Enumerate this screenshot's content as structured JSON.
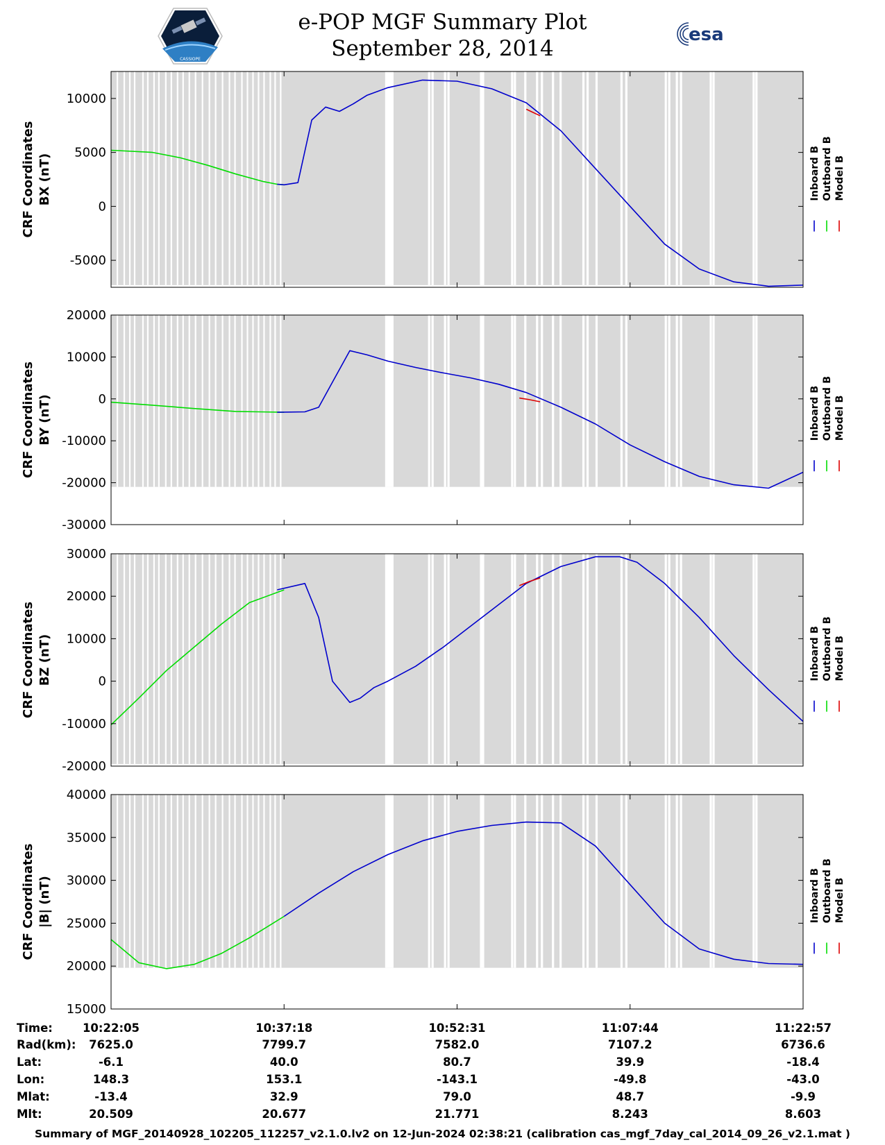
{
  "header": {
    "title": "e-POP MGF Summary Plot",
    "date": "September 28, 2014",
    "right_logo_text": "esa",
    "left_logo_text": "CASSIOPE"
  },
  "colors": {
    "inboard": "#0000cc",
    "outboard": "#00dd00",
    "model": "#dd0000",
    "shade": "#d9d9d9"
  },
  "legend": {
    "inboard": "Inboard B",
    "outboard": "Outboard B",
    "model": "Model B"
  },
  "chart_data": [
    {
      "type": "line",
      "ylabel": "CRF Coordinates",
      "ylabel2": "BX (nT)",
      "ylim": [
        -7500,
        12500
      ],
      "yticks": [
        -5000,
        0,
        5000,
        10000
      ],
      "ytick_labels": [
        "-5000",
        "0",
        "5000",
        "10000"
      ],
      "shade_to": -7300,
      "outboard": {
        "x": [
          0,
          60,
          100,
          140,
          180,
          220,
          240,
          250
        ],
        "y": [
          5200,
          5000,
          4500,
          3800,
          3000,
          2300,
          2050,
          2000
        ]
      },
      "inboard": {
        "x": [
          240,
          250,
          270,
          290,
          310,
          330,
          350,
          370,
          400,
          450,
          500,
          550,
          600,
          650,
          700,
          750,
          800,
          850,
          900,
          950,
          1000
        ],
        "y": [
          2050,
          2000,
          2200,
          8000,
          9200,
          8800,
          9500,
          10300,
          11000,
          11700,
          11600,
          10900,
          9600,
          7000,
          3500,
          0,
          -3500,
          -5800,
          -7000,
          -7400,
          -7300
        ]
      },
      "model": {
        "x": [
          600,
          610,
          620
        ],
        "y": [
          9000,
          8700,
          8400
        ]
      }
    },
    {
      "type": "line",
      "ylabel": "CRF Coordinates",
      "ylabel2": "BY (nT)",
      "ylim": [
        -30000,
        20000
      ],
      "yticks": [
        -30000,
        -20000,
        -10000,
        0,
        10000,
        20000
      ],
      "ytick_labels": [
        "-30000",
        "-20000",
        "-10000",
        "0",
        "10000",
        "20000"
      ],
      "shade_to": -21000,
      "outboard": {
        "x": [
          0,
          60,
          120,
          180,
          250
        ],
        "y": [
          -800,
          -1500,
          -2300,
          -3000,
          -3200
        ]
      },
      "inboard": {
        "x": [
          240,
          280,
          300,
          320,
          345,
          370,
          400,
          440,
          480,
          520,
          560,
          600,
          650,
          700,
          750,
          800,
          850,
          900,
          950,
          1000
        ],
        "y": [
          -3200,
          -3100,
          -2000,
          4000,
          11500,
          10500,
          9000,
          7500,
          6200,
          5000,
          3500,
          1500,
          -2000,
          -6000,
          -11000,
          -15000,
          -18500,
          -20500,
          -21300,
          -17500
        ]
      },
      "model": {
        "x": [
          590,
          605,
          620
        ],
        "y": [
          200,
          -200,
          -700
        ]
      }
    },
    {
      "type": "line",
      "ylabel": "CRF Coordinates",
      "ylabel2": "BZ (nT)",
      "ylim": [
        -20000,
        30000
      ],
      "yticks": [
        -20000,
        -10000,
        0,
        10000,
        20000,
        30000
      ],
      "ytick_labels": [
        "-20000",
        "-10000",
        "0",
        "10000",
        "20000",
        "30000"
      ],
      "shade_to": -19500,
      "outboard": {
        "x": [
          0,
          40,
          80,
          120,
          160,
          200,
          250
        ],
        "y": [
          -10300,
          -4000,
          2500,
          8000,
          13500,
          18500,
          21500
        ]
      },
      "inboard": {
        "x": [
          240,
          280,
          300,
          320,
          345,
          360,
          380,
          400,
          440,
          480,
          520,
          560,
          600,
          650,
          700,
          735,
          760,
          800,
          850,
          900,
          950,
          1000
        ],
        "y": [
          21500,
          23000,
          15000,
          0,
          -5000,
          -4000,
          -1500,
          0,
          3500,
          8000,
          13000,
          18000,
          23000,
          27000,
          29300,
          29300,
          28000,
          23000,
          15000,
          6000,
          -2000,
          -9500
        ]
      },
      "model": {
        "x": [
          590,
          605,
          620
        ],
        "y": [
          22500,
          23500,
          24300
        ]
      }
    },
    {
      "type": "line",
      "ylabel": "CRF Coordinates",
      "ylabel2": "|B| (nT)",
      "ylim": [
        15000,
        40000
      ],
      "yticks": [
        15000,
        20000,
        25000,
        30000,
        35000,
        40000
      ],
      "ytick_labels": [
        "15000",
        "20000",
        "25000",
        "30000",
        "35000",
        "40000"
      ],
      "shade_to": 19800,
      "outboard": {
        "x": [
          0,
          40,
          80,
          120,
          160,
          200,
          230,
          250
        ],
        "y": [
          23100,
          20400,
          19700,
          20200,
          21500,
          23300,
          24800,
          25800
        ]
      },
      "inboard": {
        "x": [
          250,
          300,
          350,
          400,
          450,
          500,
          550,
          600,
          650,
          700,
          750,
          800,
          850,
          900,
          950,
          1000
        ],
        "y": [
          25800,
          28500,
          31000,
          33000,
          34600,
          35700,
          36400,
          36800,
          36700,
          34000,
          29500,
          25000,
          22000,
          20800,
          20300,
          20200
        ]
      },
      "model": {
        "x": [],
        "y": []
      }
    }
  ],
  "time_axis": {
    "row_labels": [
      "Time:",
      "Rad(km):",
      "Lat:",
      "Lon:",
      "Mlat:",
      "Mlt:"
    ],
    "columns": [
      [
        "10:22:05",
        "7625.0",
        "-6.1",
        "148.3",
        "-13.4",
        "20.509"
      ],
      [
        "10:37:18",
        "7799.7",
        "40.0",
        "153.1",
        "32.9",
        "20.677"
      ],
      [
        "10:52:31",
        "7582.0",
        "80.7",
        "-143.1",
        "79.0",
        "21.771"
      ],
      [
        "11:07:44",
        "7107.2",
        "39.9",
        "-49.8",
        "48.7",
        "8.243"
      ],
      [
        "11:22:57",
        "6736.6",
        "-18.4",
        "-43.0",
        "-9.9",
        "8.603"
      ]
    ]
  },
  "footer": "Summary of MGF_20140928_102205_112257_v2.1.0.lv2 on 12-Jun-2024 02:38:21 (calibration cas_mgf_7day_cal_2014_09_26_v2.1.mat )"
}
